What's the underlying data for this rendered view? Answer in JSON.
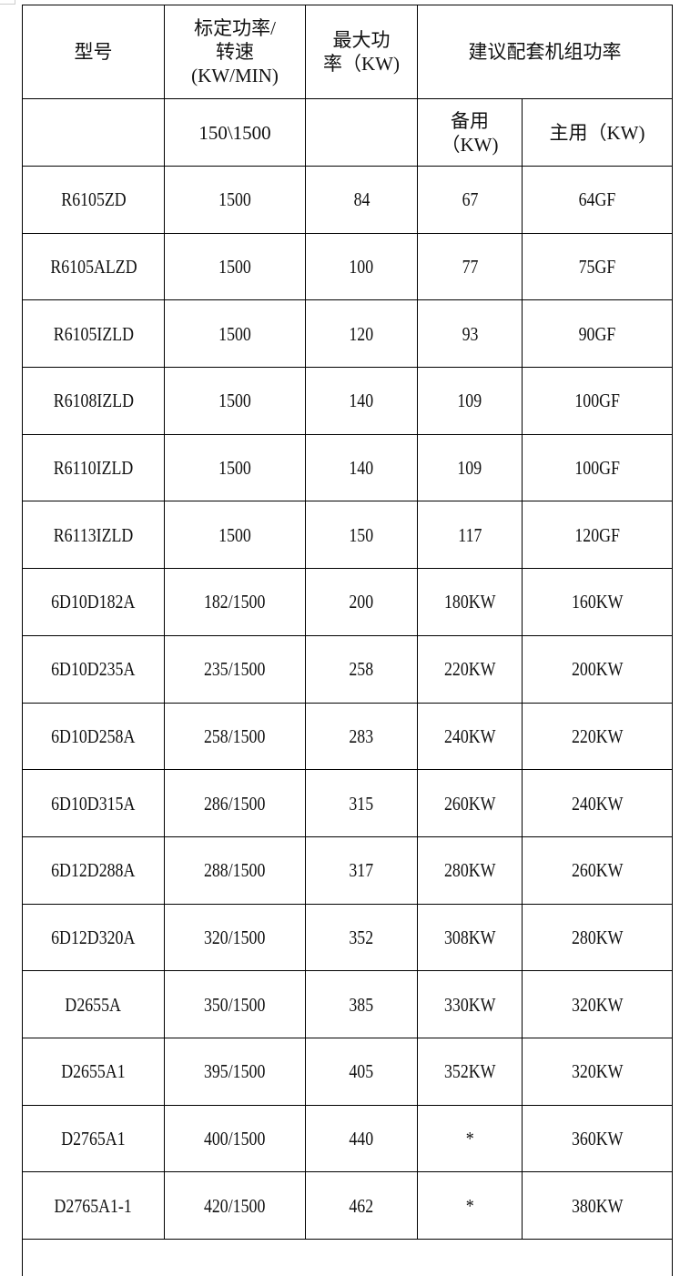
{
  "header": {
    "model": "型号",
    "rated_line1": "标定功率/",
    "rated_line2": "转速",
    "rated_line3": "(KW/MIN)",
    "max_line1": "最大功",
    "max_line2": "率（KW)",
    "recommended": "建议配套机组功率"
  },
  "subheader": {
    "model": "",
    "rated": "150\\1500",
    "max": "",
    "standby_line1": "备用",
    "standby_line2": "（KW)",
    "prime": "主用（KW)"
  },
  "rows": [
    [
      "R6105ZD",
      "1500",
      "84",
      "67",
      "64GF"
    ],
    [
      "R6105ALZD",
      "1500",
      "100",
      "77",
      "75GF"
    ],
    [
      "R6105IZLD",
      "1500",
      "120",
      "93",
      "90GF"
    ],
    [
      "R6108IZLD",
      "1500",
      "140",
      "109",
      "100GF"
    ],
    [
      "R6110IZLD",
      "1500",
      "140",
      "109",
      "100GF"
    ],
    [
      "R6113IZLD",
      "1500",
      "150",
      "117",
      "120GF"
    ],
    [
      "6D10D182A",
      "182/1500",
      "200",
      "180KW",
      "160KW"
    ],
    [
      "6D10D235A",
      "235/1500",
      "258",
      "220KW",
      "200KW"
    ],
    [
      "6D10D258A",
      "258/1500",
      "283",
      "240KW",
      "220KW"
    ],
    [
      "6D10D315A",
      "286/1500",
      "315",
      "260KW",
      "240KW"
    ],
    [
      "6D12D288A",
      "288/1500",
      "317",
      "280KW",
      "260KW"
    ],
    [
      "6D12D320A",
      "320/1500",
      "352",
      "308KW",
      "280KW"
    ],
    [
      "D2655A",
      "350/1500",
      "385",
      "330KW",
      "320KW"
    ],
    [
      "D2655A1",
      "395/1500",
      "405",
      "352KW",
      "320KW"
    ],
    [
      "D2765A1",
      "400/1500",
      "440",
      "*",
      "360KW"
    ],
    [
      "D2765A1-1",
      "420/1500",
      "462",
      "*",
      "380KW"
    ]
  ]
}
